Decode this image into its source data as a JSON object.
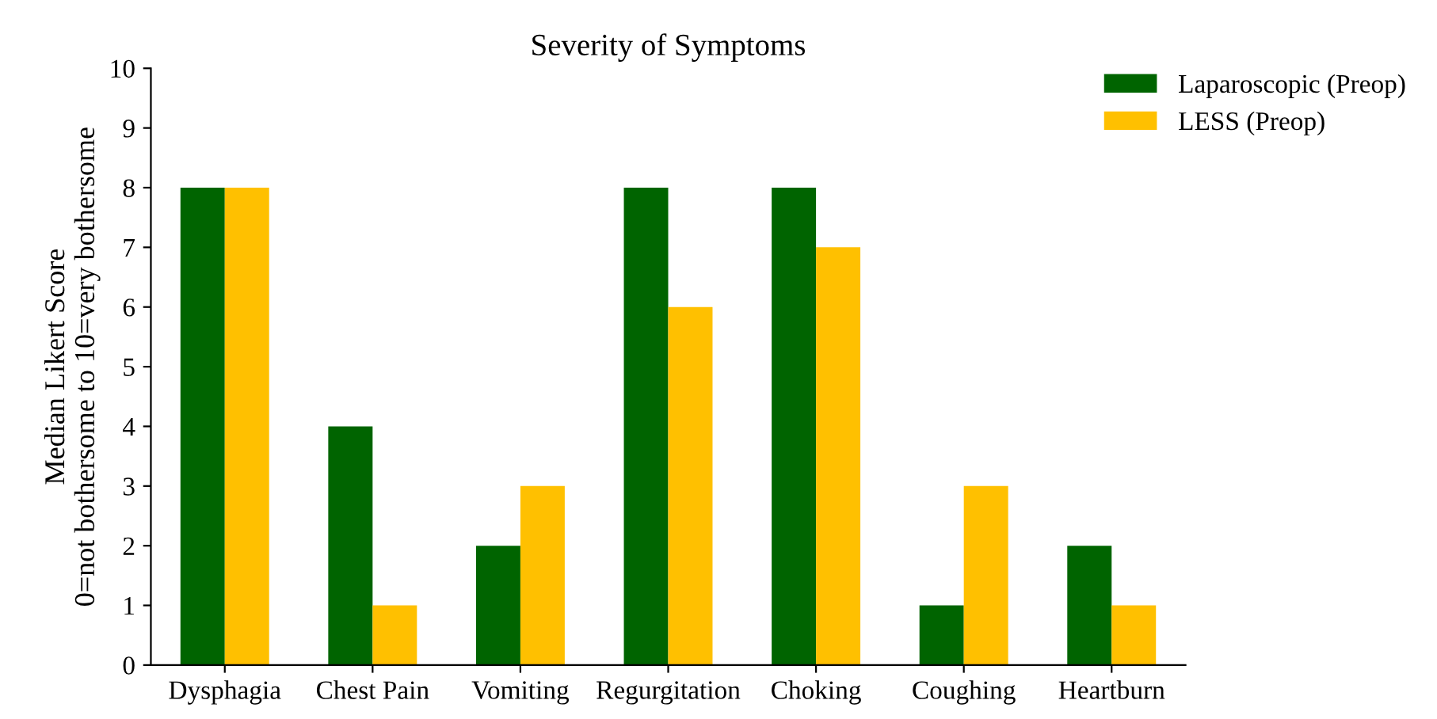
{
  "chart_data": {
    "type": "bar",
    "title": "Severity of Symptoms",
    "ylabel": "Median Likert Score\n0=not bothersome to 10=very bothersome",
    "categories": [
      "Dysphagia",
      "Chest Pain",
      "Vomiting",
      "Regurgitation",
      "Choking",
      "Coughing",
      "Heartburn"
    ],
    "series": [
      {
        "name": "Laparoscopic (Preop)",
        "color": "#006400",
        "values": [
          8,
          4,
          2,
          8,
          8,
          1,
          2
        ]
      },
      {
        "name": "LESS (Preop)",
        "color": "#ffc000",
        "values": [
          8,
          1,
          3,
          6,
          7,
          3,
          1
        ]
      }
    ],
    "ylim": [
      0,
      10
    ],
    "yticks": [
      0,
      1,
      2,
      3,
      4,
      5,
      6,
      7,
      8,
      9,
      10
    ],
    "grid": false,
    "legend": "top right"
  }
}
